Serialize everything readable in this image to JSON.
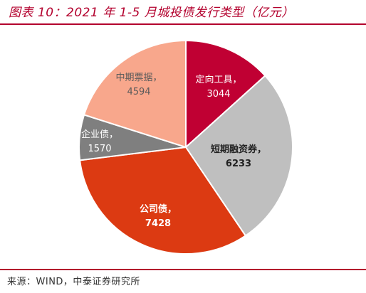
{
  "title": "图表 10：2021 年 1-5 月城投债发行类型（亿元）",
  "source": "来源：WIND，中泰证券研究所",
  "chart_data": {
    "type": "pie",
    "title": "图表 10：2021 年 1-5 月城投债发行类型（亿元）",
    "unit": "亿元",
    "legend": "none",
    "start_angle_deg": 0,
    "direction": "clockwise",
    "slices": [
      {
        "label": "定向工具，",
        "value": 3044,
        "color": "#c00033",
        "text_color": "#ffffff",
        "bold": false
      },
      {
        "label": "短期融资券，",
        "value": 6233,
        "color": "#bfbfbf",
        "text_color": "#222222",
        "bold": true
      },
      {
        "label": "公司债，",
        "value": 7428,
        "color": "#dc3a12",
        "text_color": "#ffffff",
        "bold": true
      },
      {
        "label": "企业债，",
        "value": 1570,
        "color": "#7f7f7f",
        "text_color": "#ffffff",
        "bold": false
      },
      {
        "label": "中期票据，",
        "value": 4594,
        "color": "#f8a78c",
        "text_color": "#5a5a5a",
        "bold": false
      }
    ]
  }
}
